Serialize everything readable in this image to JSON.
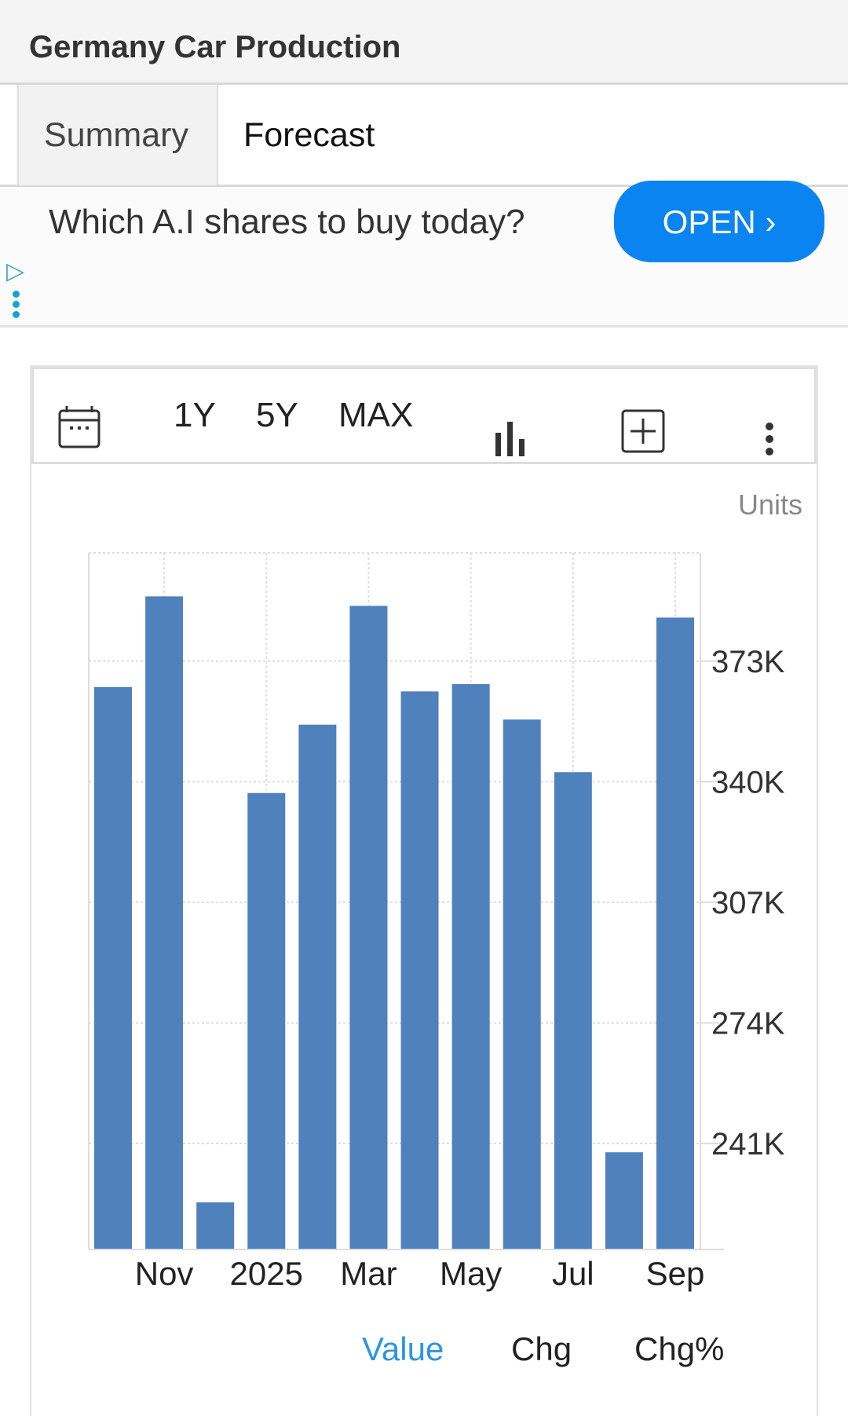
{
  "header": {
    "title": "Germany Car Production"
  },
  "tabs": [
    {
      "label": "Summary"
    },
    {
      "label": "Forecast"
    }
  ],
  "ad": {
    "text": "Which A.I shares to buy today?",
    "button": "OPEN ›",
    "button_color": "#0a84f0"
  },
  "toolbar": {
    "calendar_icon": "calendar-icon",
    "ranges": [
      "1Y",
      "5Y",
      "MAX"
    ],
    "chart_type_icon": "bar-chart-icon",
    "add_icon": "plus-square-icon",
    "more_icon": "vertical-dots-icon"
  },
  "chart_data": {
    "type": "bar",
    "unit_label": "Units",
    "categories": [
      "Oct 2024",
      "Nov 2024",
      "Dec 2024",
      "Jan 2025",
      "Feb 2025",
      "Mar 2025",
      "Apr 2025",
      "May 2025",
      "Jun 2025",
      "Jul 2025",
      "Aug 2025",
      "Sep 2025"
    ],
    "values": [
      365900,
      390700,
      224900,
      336900,
      355600,
      388100,
      364700,
      366700,
      357000,
      342600,
      238600,
      384900
    ],
    "x_tick_labels": [
      {
        "index": 1,
        "label": "Nov"
      },
      {
        "index": 3,
        "label": "2025"
      },
      {
        "index": 5,
        "label": "Mar"
      },
      {
        "index": 7,
        "label": "May"
      },
      {
        "index": 9,
        "label": "Jul"
      },
      {
        "index": 11,
        "label": "Sep"
      }
    ],
    "y_ticks": [
      {
        "value": 241000,
        "label": "241K"
      },
      {
        "value": 274000,
        "label": "274K"
      },
      {
        "value": 307000,
        "label": "307K"
      },
      {
        "value": 340000,
        "label": "340K"
      },
      {
        "value": 373000,
        "label": "373K"
      }
    ],
    "ylim": [
      212000,
      402600
    ],
    "y_axis_side": "right",
    "grid": true,
    "bar_color": "#4f81bd"
  },
  "legend": {
    "items": [
      {
        "label": "Value",
        "active": true,
        "color": "#2b95e3"
      },
      {
        "label": "Chg",
        "active": false,
        "color": "#222"
      },
      {
        "label": "Chg%",
        "active": false,
        "color": "#222"
      }
    ]
  }
}
